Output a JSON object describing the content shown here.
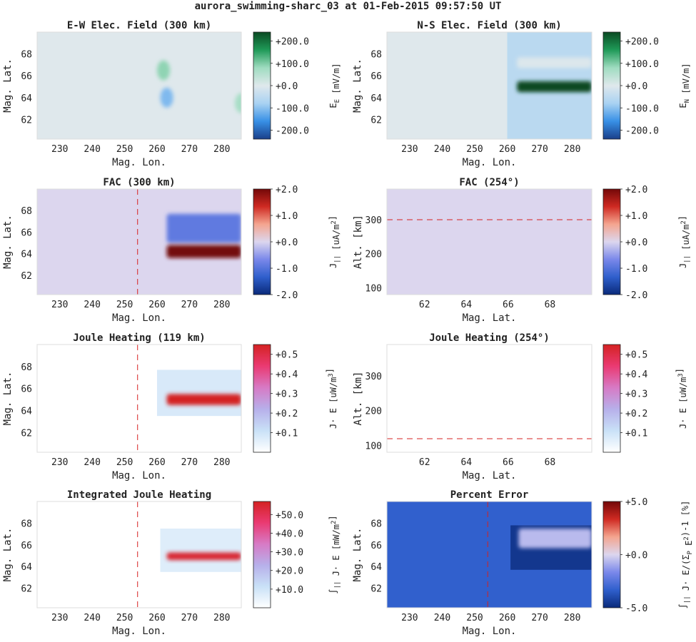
{
  "figure_title": "aurora_swimming-sharc_03 at 01-Feb-2015 09:57:50 UT",
  "colors": {
    "red_div": [
      "#0a2a7a",
      "#2f5fcc",
      "#7a88ea",
      "#dcd6ee",
      "#f4a58f",
      "#cf2a22",
      "#730808"
    ],
    "green_div": [
      "#1a3f8a",
      "#3890e6",
      "#a9d2f2",
      "#dfe8ec",
      "#9fdcc0",
      "#1f9a58",
      "#0a4a22"
    ],
    "joule_seq": [
      "#ffffff",
      "#c9e1f7",
      "#b7b0ea",
      "#d77ac5",
      "#ea3a72",
      "#d42222"
    ],
    "cut_line": "#d62020"
  },
  "chart_data": [
    {
      "type": "heatmap",
      "title": "E-W Elec. Field (300 km)",
      "xlabel": "Mag. Lon.",
      "ylabel": "Mag. Lat.",
      "xlim": [
        223,
        286
      ],
      "ylim": [
        60.2,
        70
      ],
      "xticks": [
        "230",
        "240",
        "250",
        "260",
        "270",
        "280"
      ],
      "yticks": [
        "62",
        "64",
        "66",
        "68"
      ],
      "colorbar": {
        "label": "E_E [mV/m]",
        "range": [
          -240,
          240
        ],
        "ticks": [
          "+200.0",
          "+100.0",
          "+0.0",
          "-100.0",
          "-200.0"
        ],
        "palette": "green_div"
      },
      "features": [
        {
          "kind": "blob",
          "lon": 262,
          "lat": 66.5,
          "value": 90
        },
        {
          "kind": "blob",
          "lon": 263,
          "lat": 64.0,
          "value": -110
        },
        {
          "kind": "blob",
          "lon": 286,
          "lat": 63.5,
          "value": 70
        }
      ]
    },
    {
      "type": "heatmap",
      "title": "N-S Elec. Field (300 km)",
      "xlabel": "Mag. Lon.",
      "ylabel": "Mag. Lat.",
      "xlim": [
        223,
        286
      ],
      "ylim": [
        60.2,
        70
      ],
      "xticks": [
        "230",
        "240",
        "250",
        "260",
        "270",
        "280"
      ],
      "yticks": [
        "62",
        "64",
        "66",
        "68"
      ],
      "colorbar": {
        "label": "E_N [mV/m]",
        "range": [
          -240,
          240
        ],
        "ticks": [
          "+200.0",
          "+100.0",
          "+0.0",
          "-100.0",
          "-200.0"
        ],
        "palette": "green_div"
      },
      "features": [
        {
          "kind": "region",
          "lon": [
            260,
            286
          ],
          "lat": [
            60.2,
            70
          ],
          "value": -55
        },
        {
          "kind": "band",
          "lon": [
            263,
            286
          ],
          "lat": [
            64.5,
            65.5
          ],
          "value": 240
        },
        {
          "kind": "band",
          "lon": [
            263,
            286
          ],
          "lat": [
            66.7,
            67.7
          ],
          "value": -5
        }
      ]
    },
    {
      "type": "heatmap",
      "title": "FAC (300 km)",
      "xlabel": "Mag. Lon.",
      "ylabel": "Mag. Lat.",
      "xlim": [
        223,
        286
      ],
      "ylim": [
        60.2,
        70
      ],
      "xticks": [
        "230",
        "240",
        "250",
        "260",
        "270",
        "280"
      ],
      "yticks": [
        "62",
        "64",
        "66",
        "68"
      ],
      "colorbar": {
        "label": "J_|| [uA/m^2]",
        "range": [
          -2,
          2
        ],
        "ticks": [
          "+2.0",
          "+1.0",
          "+0.0",
          "-1.0",
          "-2.0"
        ],
        "palette": "red_div"
      },
      "cut_line": {
        "axis": "x",
        "value": 254
      },
      "features": [
        {
          "kind": "band",
          "lon": [
            263,
            286
          ],
          "lat": [
            65.0,
            67.7
          ],
          "value": -0.9
        },
        {
          "kind": "band",
          "lon": [
            263,
            286
          ],
          "lat": [
            63.6,
            64.8
          ],
          "value": 2.0
        }
      ]
    },
    {
      "type": "heatmap",
      "title": "FAC (254°)",
      "xlabel": "Mag. Lat.",
      "ylabel": "Alt. [km]",
      "xlim": [
        60.2,
        70
      ],
      "ylim": [
        80,
        390
      ],
      "xticks": [
        "62",
        "64",
        "66",
        "68"
      ],
      "yticks": [
        "100",
        "200",
        "300"
      ],
      "colorbar": {
        "label": "J_|| [uA/m^2]",
        "range": [
          -2,
          2
        ],
        "ticks": [
          "+2.0",
          "+1.0",
          "+0.0",
          "-1.0",
          "-2.0"
        ],
        "palette": "red_div"
      },
      "cut_line": {
        "axis": "y",
        "value": 300
      }
    },
    {
      "type": "heatmap",
      "title": "Joule Heating (119 km)",
      "xlabel": "Mag. Lon.",
      "ylabel": "Mag. Lat.",
      "xlim": [
        223,
        286
      ],
      "ylim": [
        60.2,
        70
      ],
      "xticks": [
        "230",
        "240",
        "250",
        "260",
        "270",
        "280"
      ],
      "yticks": [
        "62",
        "64",
        "66",
        "68"
      ],
      "colorbar": {
        "label": "J· E [uW/m^3]",
        "range": [
          0,
          0.55
        ],
        "ticks": [
          "+0.5",
          "+0.4",
          "+0.3",
          "+0.2",
          "+0.1"
        ],
        "palette": "joule_seq"
      },
      "cut_line": {
        "axis": "x",
        "value": 254
      },
      "features": [
        {
          "kind": "region",
          "lon": [
            260,
            286
          ],
          "lat": [
            63.5,
            67.7
          ],
          "value": 0.08
        },
        {
          "kind": "band",
          "lon": [
            263,
            286
          ],
          "lat": [
            64.5,
            65.5
          ],
          "value": 0.55
        }
      ]
    },
    {
      "type": "heatmap",
      "title": "Joule Heating (254°)",
      "xlabel": "Mag. Lat.",
      "ylabel": "Alt. [km]",
      "xlim": [
        60.2,
        70
      ],
      "ylim": [
        80,
        390
      ],
      "xticks": [
        "62",
        "64",
        "66",
        "68"
      ],
      "yticks": [
        "100",
        "200",
        "300"
      ],
      "colorbar": {
        "label": "J· E [uW/m^3]",
        "range": [
          0,
          0.55
        ],
        "ticks": [
          "+0.5",
          "+0.4",
          "+0.3",
          "+0.2",
          "+0.1"
        ],
        "palette": "joule_seq"
      },
      "cut_line": {
        "axis": "y",
        "value": 119
      }
    },
    {
      "type": "heatmap",
      "title": "Integrated Joule Heating",
      "xlabel": "Mag. Lon.",
      "ylabel": "Mag. Lat.",
      "xlim": [
        223,
        286
      ],
      "ylim": [
        60.2,
        70
      ],
      "xticks": [
        "230",
        "240",
        "250",
        "260",
        "270",
        "280"
      ],
      "yticks": [
        "62",
        "64",
        "66",
        "68"
      ],
      "colorbar": {
        "label": "∫_|| J· E [mW/m^2]",
        "range": [
          0,
          57
        ],
        "ticks": [
          "+50.0",
          "+40.0",
          "+30.0",
          "+20.0",
          "+10.0"
        ],
        "palette": "joule_seq"
      },
      "cut_line": {
        "axis": "x",
        "value": 254
      },
      "features": [
        {
          "kind": "region",
          "lon": [
            261,
            286
          ],
          "lat": [
            63.5,
            67.5
          ],
          "value": 7
        },
        {
          "kind": "band",
          "lon": [
            263,
            286
          ],
          "lat": [
            64.6,
            65.3
          ],
          "value": 55
        }
      ]
    },
    {
      "type": "heatmap",
      "title": "Percent Error",
      "xlabel": "Mag. Lon.",
      "ylabel": "Mag. Lat.",
      "xlim": [
        223,
        286
      ],
      "ylim": [
        60.2,
        70
      ],
      "xticks": [
        "230",
        "240",
        "250",
        "260",
        "270",
        "280"
      ],
      "yticks": [
        "62",
        "64",
        "66",
        "68"
      ],
      "colorbar": {
        "label": "∫_|| J· E/(Σ_P E^2)-1 [%]",
        "range": [
          -5,
          5
        ],
        "ticks": [
          "+5.0",
          "+0.0",
          "-5.0"
        ],
        "palette": "red_div"
      },
      "cut_line": {
        "axis": "x",
        "value": 254
      },
      "features": [
        {
          "kind": "region",
          "lon": [
            223,
            286
          ],
          "lat": [
            60.2,
            70
          ],
          "value": -3.3
        },
        {
          "kind": "region",
          "lon": [
            261,
            286
          ],
          "lat": [
            63.7,
            67.8
          ],
          "value": -4.6
        },
        {
          "kind": "band",
          "lon": [
            263.5,
            286
          ],
          "lat": [
            65.7,
            67.5
          ],
          "value": -0.6
        }
      ]
    }
  ]
}
